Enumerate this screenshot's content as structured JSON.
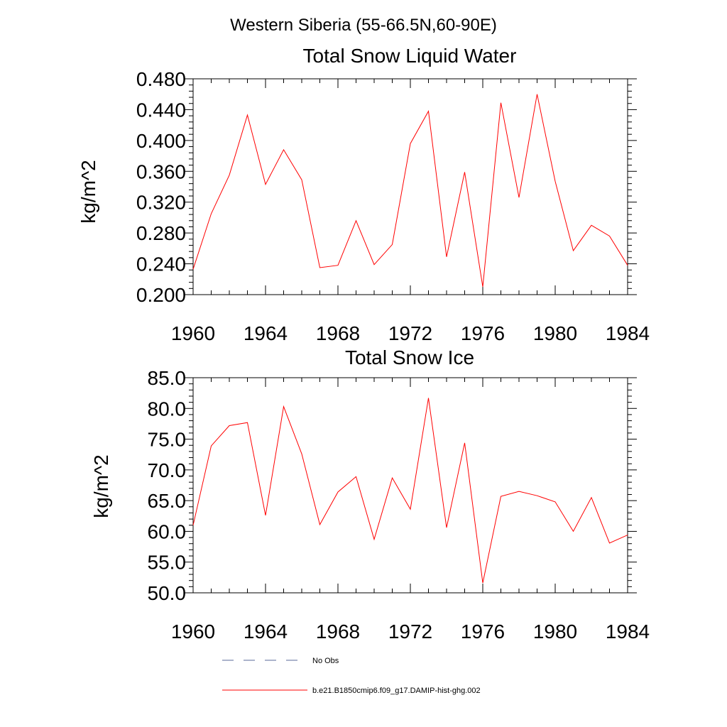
{
  "figure": {
    "suptitle": "Western Siberia (55-66.5N,60-90E)"
  },
  "chart_data": [
    {
      "type": "line",
      "title": "Total Snow Liquid Water",
      "xlabel": "",
      "ylabel": "kg/m^2",
      "xlim": [
        1960,
        1984
      ],
      "ylim": [
        0.2,
        0.48
      ],
      "x_ticks": [
        "1960",
        "1964",
        "1968",
        "1972",
        "1976",
        "1980",
        "1984"
      ],
      "y_ticks": [
        "0.200",
        "0.240",
        "0.280",
        "0.320",
        "0.360",
        "0.400",
        "0.440",
        "0.480"
      ],
      "grid": false,
      "x": [
        1960,
        1961,
        1962,
        1963,
        1964,
        1965,
        1966,
        1967,
        1968,
        1969,
        1970,
        1971,
        1972,
        1973,
        1974,
        1975,
        1976,
        1977,
        1978,
        1979,
        1980,
        1981,
        1982,
        1983,
        1984
      ],
      "series": [
        {
          "name": "b.e21.B1850cmip6.f09_g17.DAMIP-hist-ghg.002",
          "color": "#ff0000",
          "values": [
            0.233,
            0.305,
            0.355,
            0.433,
            0.343,
            0.388,
            0.349,
            0.235,
            0.238,
            0.296,
            0.239,
            0.265,
            0.396,
            0.438,
            0.249,
            0.359,
            0.21,
            0.449,
            0.326,
            0.46,
            0.347,
            0.257,
            0.29,
            0.276,
            0.238
          ]
        }
      ]
    },
    {
      "type": "line",
      "title": "Total Snow Ice",
      "xlabel": "",
      "ylabel": "kg/m^2",
      "xlim": [
        1960,
        1984
      ],
      "ylim": [
        50,
        85
      ],
      "x_ticks": [
        "1960",
        "1964",
        "1968",
        "1972",
        "1976",
        "1980",
        "1984"
      ],
      "y_ticks": [
        "50.0",
        "55.0",
        "60.0",
        "65.0",
        "70.0",
        "75.0",
        "80.0",
        "85.0"
      ],
      "grid": false,
      "x": [
        1960,
        1961,
        1962,
        1963,
        1964,
        1965,
        1966,
        1967,
        1968,
        1969,
        1970,
        1971,
        1972,
        1973,
        1974,
        1975,
        1976,
        1977,
        1978,
        1979,
        1980,
        1981,
        1982,
        1983,
        1984
      ],
      "series": [
        {
          "name": "b.e21.B1850cmip6.f09_g17.DAMIP-hist-ghg.002",
          "color": "#ff0000",
          "values": [
            61.0,
            73.9,
            77.2,
            77.7,
            62.6,
            80.3,
            72.6,
            61.1,
            66.4,
            68.9,
            58.7,
            68.7,
            63.6,
            81.7,
            60.6,
            74.4,
            51.6,
            65.7,
            66.5,
            65.8,
            64.8,
            60.0,
            65.5,
            58.1,
            59.4
          ]
        }
      ]
    }
  ],
  "legend": {
    "placement": "bottom",
    "items": [
      {
        "label": "No Obs",
        "style": "dashed",
        "color": "#5a6a9a"
      },
      {
        "label": "b.e21.B1850cmip6.f09_g17.DAMIP-hist-ghg.002",
        "style": "solid",
        "color": "#ff0000"
      }
    ]
  }
}
